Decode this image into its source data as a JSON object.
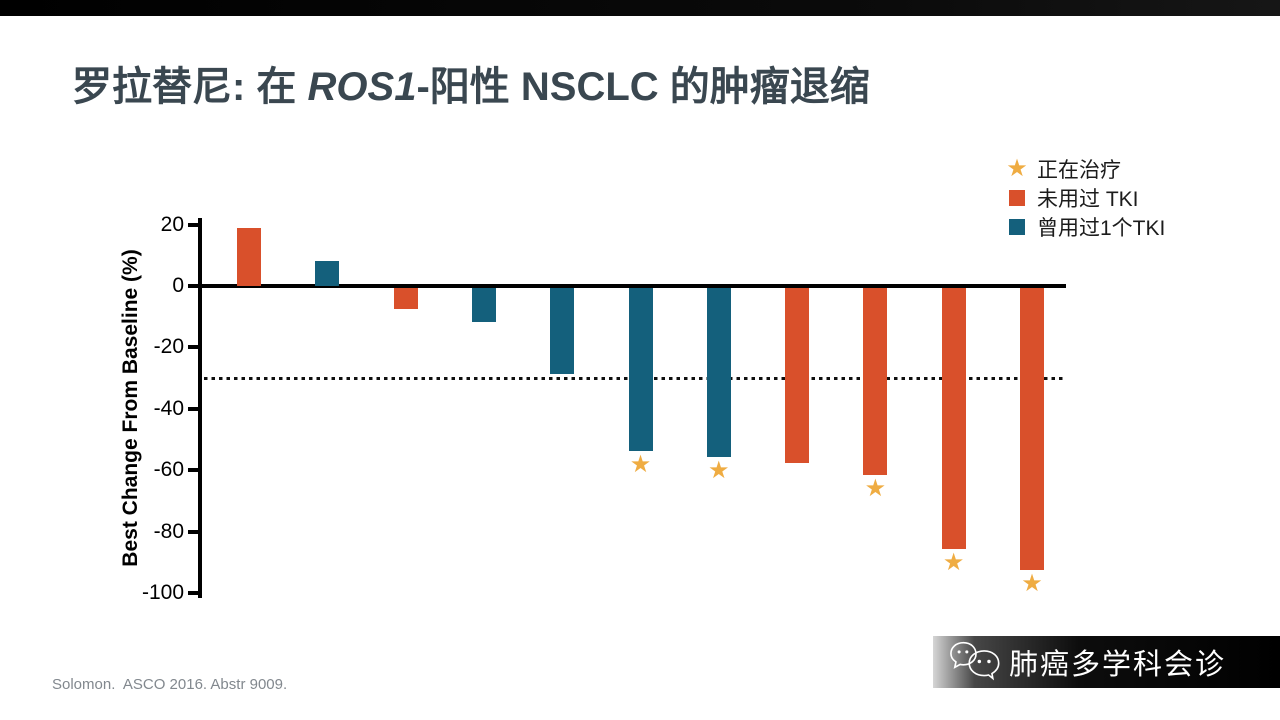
{
  "slide": {
    "title": {
      "prefix": "罗拉替尼: 在 ",
      "italic": "ROS1",
      "suffix": "-阳性 NSCLC 的肿瘤退缩"
    },
    "footer": "Solomon.  ASCO 2016. Abstr 9009.",
    "watermark": {
      "icon": "wechat-bubbles-icon",
      "text": "肺癌多学科会诊"
    }
  },
  "legend": {
    "items": [
      {
        "icon": "star",
        "glyph": "★",
        "label": "正在治疗",
        "color": "#efac42"
      },
      {
        "icon": "square",
        "glyph": "■",
        "label": "未用过 TKI",
        "color": "#d9502b"
      },
      {
        "icon": "square",
        "glyph": "■",
        "label": "曾用过1个TKI",
        "color": "#14607c"
      }
    ]
  },
  "chart_data": {
    "type": "bar",
    "title": "",
    "xlabel": "",
    "ylabel": "Best Change From Baseline (%)",
    "ylim": [
      -100,
      20
    ],
    "yticks": [
      20,
      0,
      -20,
      -40,
      -60,
      -80,
      -100
    ],
    "reference_line": -30,
    "grid": false,
    "legend_position": "top-right",
    "star_meaning": "正在治疗 (still on treatment)",
    "group_colors": {
      "未用过 TKI": "#d9502b",
      "曾用过1个TKI": "#14607c"
    },
    "bars": [
      {
        "patient": 1,
        "value": 19,
        "group": "未用过 TKI",
        "star": false
      },
      {
        "patient": 2,
        "value": 8,
        "group": "曾用过1个TKI",
        "star": false
      },
      {
        "patient": 3,
        "value": -7,
        "group": "未用过 TKI",
        "star": false
      },
      {
        "patient": 4,
        "value": -11,
        "group": "曾用过1个TKI",
        "star": false
      },
      {
        "patient": 5,
        "value": -28,
        "group": "曾用过1个TKI",
        "star": false
      },
      {
        "patient": 6,
        "value": -53,
        "group": "曾用过1个TKI",
        "star": true
      },
      {
        "patient": 7,
        "value": -55,
        "group": "曾用过1个TKI",
        "star": true
      },
      {
        "patient": 8,
        "value": -57,
        "group": "未用过 TKI",
        "star": false
      },
      {
        "patient": 9,
        "value": -61,
        "group": "未用过 TKI",
        "star": true
      },
      {
        "patient": 10,
        "value": -85,
        "group": "未用过 TKI",
        "star": true
      },
      {
        "patient": 11,
        "value": -92,
        "group": "未用过 TKI",
        "star": true
      }
    ]
  }
}
